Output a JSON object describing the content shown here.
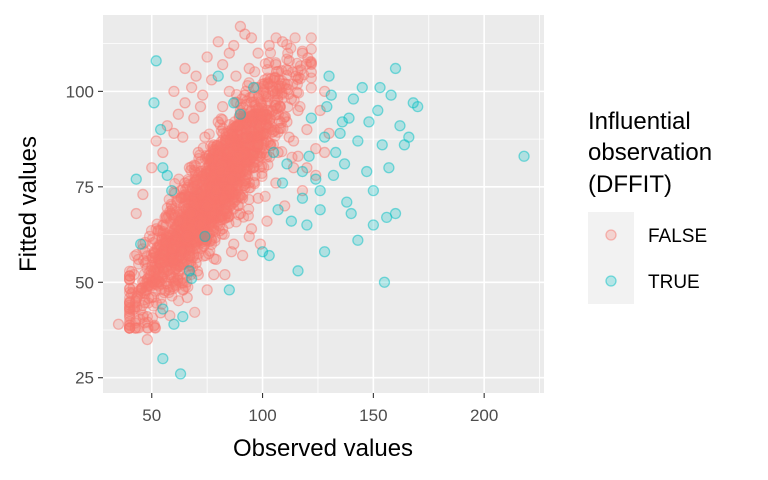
{
  "chart_data": {
    "type": "scatter",
    "xlabel": "Observed values",
    "ylabel": "Fitted values",
    "xlim": [
      28,
      227
    ],
    "ylim": [
      21,
      120
    ],
    "x_ticks": [
      50,
      100,
      150,
      200
    ],
    "y_ticks": [
      25,
      50,
      75,
      100
    ],
    "x_tick_labels": [
      "50",
      "100",
      "150",
      "200"
    ],
    "y_tick_labels": [
      "25",
      "50",
      "75",
      "100"
    ],
    "grid": true,
    "panel_background": "#ebebeb",
    "legend": {
      "title_lines": [
        "Influential",
        "observation",
        "(DFFIT)"
      ],
      "placement": "right",
      "entries": [
        {
          "label": "FALSE",
          "color": "#F8766D"
        },
        {
          "label": "TRUE",
          "color": "#00BFC4"
        }
      ]
    },
    "series": [
      {
        "name": "FALSE",
        "color": "#F8766D",
        "alpha": 0.25,
        "points": [
          [
            35,
            39
          ],
          [
            40,
            44
          ],
          [
            42,
            52
          ],
          [
            44,
            56
          ],
          [
            45,
            48
          ],
          [
            46,
            60
          ],
          [
            47,
            55
          ],
          [
            48,
            41
          ],
          [
            48,
            35
          ],
          [
            49,
            62
          ],
          [
            50,
            46
          ],
          [
            50,
            54
          ],
          [
            51,
            58
          ],
          [
            52,
            64
          ],
          [
            53,
            50
          ],
          [
            54,
            42
          ],
          [
            55,
            60
          ],
          [
            56,
            67
          ],
          [
            57,
            53
          ],
          [
            58,
            63
          ],
          [
            59,
            70
          ],
          [
            60,
            56
          ],
          [
            61,
            49
          ],
          [
            62,
            66
          ],
          [
            63,
            72
          ],
          [
            64,
            58
          ],
          [
            65,
            76
          ],
          [
            66,
            62
          ],
          [
            67,
            80
          ],
          [
            68,
            68
          ],
          [
            69,
            57
          ],
          [
            70,
            74
          ],
          [
            71,
            84
          ],
          [
            72,
            65
          ],
          [
            73,
            78
          ],
          [
            74,
            88
          ],
          [
            75,
            70
          ],
          [
            76,
            82
          ],
          [
            77,
            61
          ],
          [
            78,
            86
          ],
          [
            79,
            74
          ],
          [
            80,
            92
          ],
          [
            81,
            79
          ],
          [
            82,
            96
          ],
          [
            83,
            69
          ],
          [
            84,
            87
          ],
          [
            85,
            100
          ],
          [
            86,
            77
          ],
          [
            87,
            91
          ],
          [
            88,
            104
          ],
          [
            89,
            83
          ],
          [
            90,
            95
          ],
          [
            91,
            72
          ],
          [
            92,
            99
          ],
          [
            93,
            88
          ],
          [
            94,
            106
          ],
          [
            95,
            92
          ],
          [
            96,
            80
          ],
          [
            97,
            101
          ],
          [
            98,
            110
          ],
          [
            99,
            94
          ],
          [
            100,
            86
          ],
          [
            101,
            103
          ],
          [
            102,
            97
          ],
          [
            103,
            112
          ],
          [
            104,
            90
          ],
          [
            105,
            100
          ],
          [
            106,
            107
          ],
          [
            107,
            84
          ],
          [
            108,
            96
          ],
          [
            109,
            113
          ],
          [
            110,
            102
          ],
          [
            111,
            92
          ],
          [
            112,
            108
          ],
          [
            113,
            98
          ],
          [
            114,
            87
          ],
          [
            115,
            104
          ],
          [
            116,
            95
          ],
          [
            118,
            110
          ],
          [
            120,
            90
          ],
          [
            122,
            105
          ],
          [
            124,
            85
          ],
          [
            126,
            95
          ],
          [
            128,
            100
          ],
          [
            43,
            68
          ],
          [
            46,
            73
          ],
          [
            50,
            80
          ],
          [
            52,
            87
          ],
          [
            55,
            84
          ],
          [
            57,
            91
          ],
          [
            60,
            89
          ],
          [
            62,
            94
          ],
          [
            65,
            97
          ],
          [
            68,
            101
          ],
          [
            70,
            104
          ],
          [
            72,
            96
          ],
          [
            58,
            48
          ],
          [
            62,
            52
          ],
          [
            66,
            46
          ],
          [
            70,
            55
          ],
          [
            74,
            60
          ],
          [
            78,
            52
          ],
          [
            82,
            64
          ],
          [
            86,
            58
          ],
          [
            90,
            68
          ],
          [
            94,
            62
          ],
          [
            98,
            72
          ],
          [
            102,
            66
          ],
          [
            106,
            76
          ],
          [
            110,
            70
          ],
          [
            114,
            80
          ],
          [
            118,
            74
          ],
          [
            60,
            100
          ],
          [
            65,
            106
          ],
          [
            75,
            109
          ],
          [
            80,
            113
          ],
          [
            85,
            110
          ],
          [
            90,
            117
          ],
          [
            95,
            114
          ],
          [
            112,
            88
          ],
          [
            116,
            83
          ],
          [
            120,
            80
          ],
          [
            124,
            78
          ],
          [
            128,
            84
          ],
          [
            130,
            89
          ],
          [
            64,
            88
          ],
          [
            69,
            93
          ],
          [
            73,
            99
          ],
          [
            77,
            103
          ],
          [
            82,
            107
          ],
          [
            87,
            112
          ],
          [
            92,
            115
          ],
          [
            67,
            57
          ],
          [
            71,
            52
          ],
          [
            75,
            48
          ],
          [
            79,
            56
          ],
          [
            83,
            52
          ],
          [
            87,
            60
          ],
          [
            91,
            57
          ],
          [
            95,
            64
          ],
          [
            99,
            60
          ]
        ]
      },
      {
        "name": "TRUE",
        "color": "#00BFC4",
        "alpha": 0.25,
        "points": [
          [
            52,
            108
          ],
          [
            51,
            97
          ],
          [
            54,
            90
          ],
          [
            55,
            80
          ],
          [
            43,
            77
          ],
          [
            57,
            78
          ],
          [
            59,
            74
          ],
          [
            45,
            60
          ],
          [
            55,
            43
          ],
          [
            60,
            39
          ],
          [
            64,
            41
          ],
          [
            55,
            30
          ],
          [
            63,
            26
          ],
          [
            67,
            53
          ],
          [
            68,
            51
          ],
          [
            74,
            62
          ],
          [
            80,
            104
          ],
          [
            85,
            48
          ],
          [
            87,
            97
          ],
          [
            90,
            94
          ],
          [
            96,
            101
          ],
          [
            100,
            58
          ],
          [
            103,
            57
          ],
          [
            105,
            84
          ],
          [
            107,
            69
          ],
          [
            109,
            76
          ],
          [
            111,
            81
          ],
          [
            113,
            66
          ],
          [
            116,
            53
          ],
          [
            118,
            79
          ],
          [
            120,
            65
          ],
          [
            121,
            83
          ],
          [
            122,
            93
          ],
          [
            124,
            77
          ],
          [
            126,
            69
          ],
          [
            128,
            88
          ],
          [
            129,
            96
          ],
          [
            130,
            104
          ],
          [
            131,
            99
          ],
          [
            133,
            84
          ],
          [
            135,
            89
          ],
          [
            137,
            81
          ],
          [
            138,
            71
          ],
          [
            139,
            93
          ],
          [
            140,
            68
          ],
          [
            141,
            98
          ],
          [
            143,
            87
          ],
          [
            145,
            101
          ],
          [
            147,
            79
          ],
          [
            148,
            92
          ],
          [
            150,
            74
          ],
          [
            152,
            95
          ],
          [
            153,
            101
          ],
          [
            154,
            86
          ],
          [
            156,
            67
          ],
          [
            157,
            80
          ],
          [
            158,
            99
          ],
          [
            160,
            106
          ],
          [
            162,
            91
          ],
          [
            164,
            86
          ],
          [
            166,
            88
          ],
          [
            168,
            97
          ],
          [
            170,
            96
          ],
          [
            155,
            50
          ],
          [
            150,
            65
          ],
          [
            160,
            68
          ],
          [
            218,
            83
          ],
          [
            143,
            61
          ],
          [
            128,
            58
          ],
          [
            118,
            72
          ],
          [
            126,
            74
          ],
          [
            132,
            78
          ],
          [
            136,
            92
          ]
        ]
      }
    ]
  }
}
